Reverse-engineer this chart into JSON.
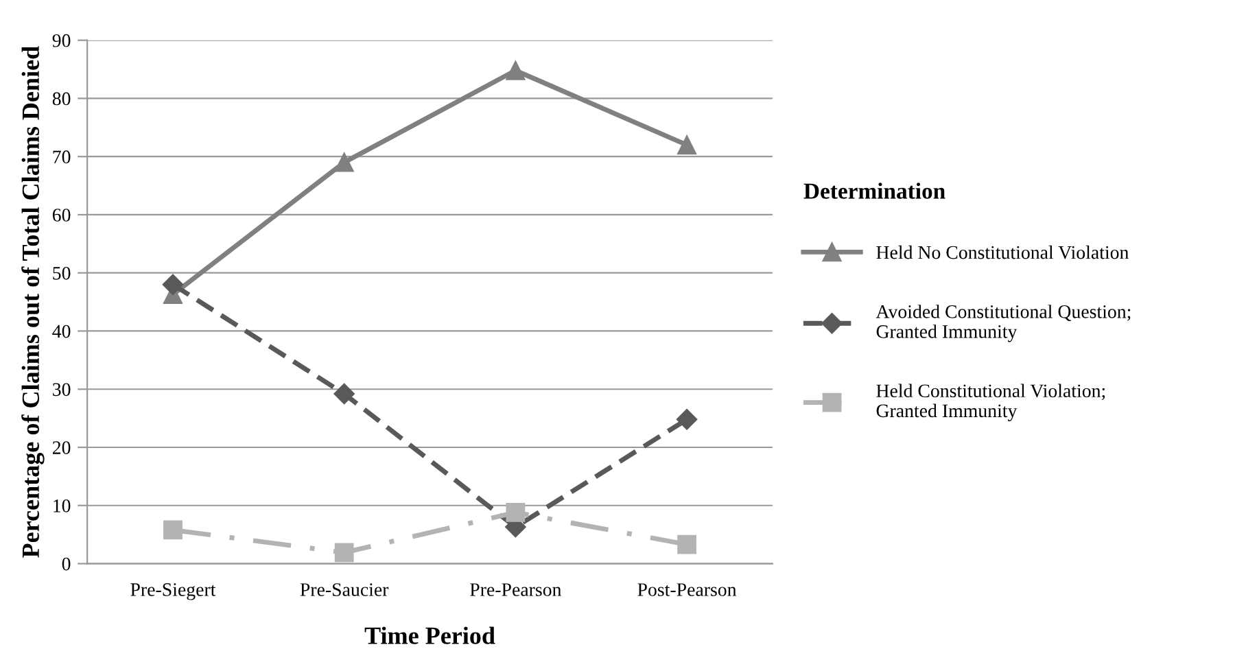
{
  "chart_data": {
    "type": "line",
    "xlabel": "Time Period",
    "ylabel": "Percentage of Claims out of Total Claims Denied",
    "legend_title": "Determination",
    "categories": [
      "Pre-Siegert",
      "Pre-Saucier",
      "Pre-Pearson",
      "Post-Pearson"
    ],
    "series": [
      {
        "name": "Held No Constitutional Violation",
        "color": "#808080",
        "values": [
          46.3,
          69,
          84.8,
          72
        ],
        "marker": "triangle",
        "line_style": "solid"
      },
      {
        "name": "Avoided Constitutional Question; Granted Immunity",
        "color": "#595959",
        "values": [
          48,
          29.2,
          6.3,
          24.8
        ],
        "marker": "diamond",
        "line_style": "dashed"
      },
      {
        "name": "Held Constitutional Violation; Granted Immunity",
        "color": "#b3b3b3",
        "values": [
          5.8,
          1.9,
          8.8,
          3.3
        ],
        "marker": "square",
        "line_style": "dashdot"
      }
    ],
    "ylim": [
      0,
      90
    ],
    "yticks": [
      0,
      10,
      20,
      30,
      40,
      50,
      60,
      70,
      80,
      90
    ],
    "grid": "y",
    "legend": "right"
  }
}
